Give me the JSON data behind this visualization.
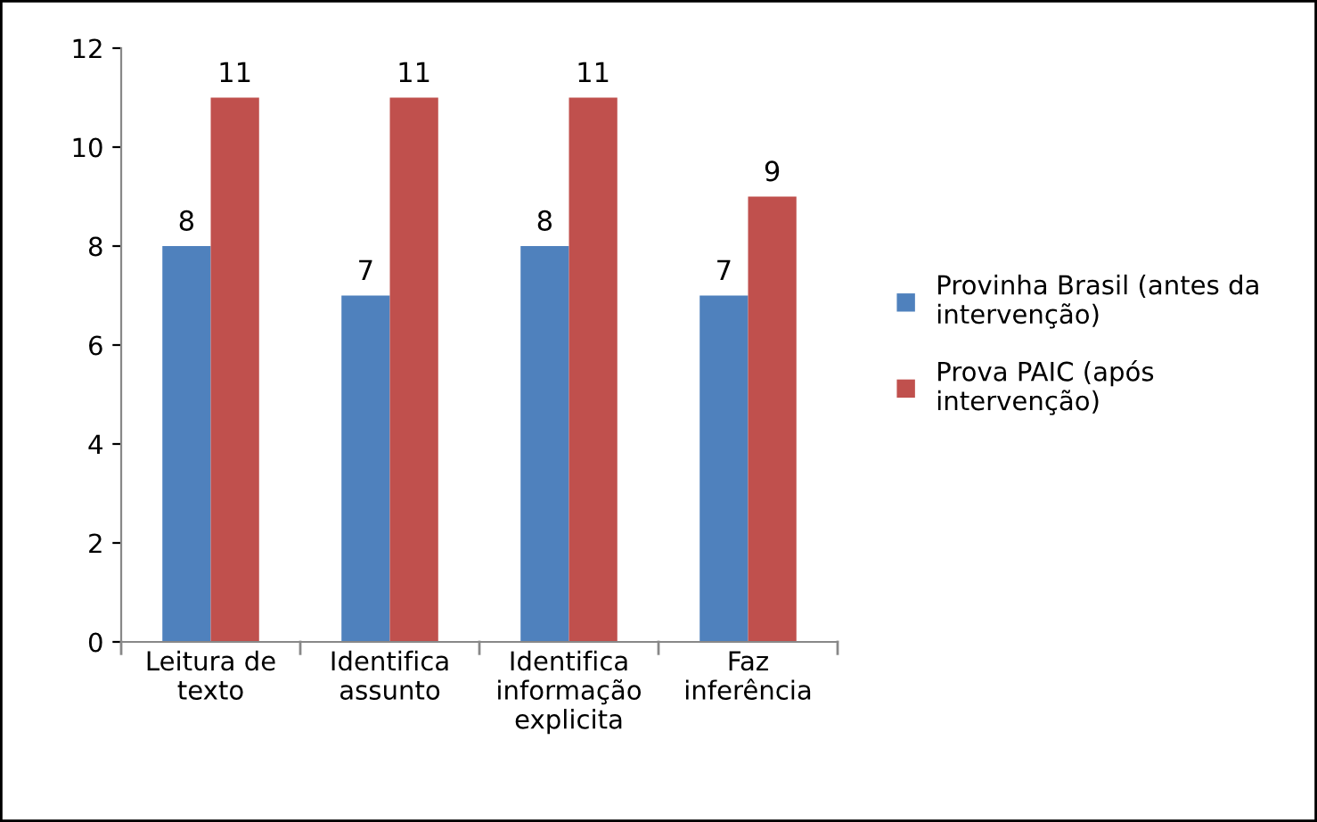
{
  "chart_data": {
    "type": "bar",
    "categories": [
      "Leitura de\ntexto",
      "Identifica\nassunto",
      "Identifica\ninformação\nexplicita",
      "Faz\ninferência"
    ],
    "series": [
      {
        "name": "Provinha Brasil (antes da\nintervenção)",
        "color": "#4f81bd",
        "values": [
          8,
          7,
          8,
          7
        ]
      },
      {
        "name": "Prova PAIC (após\nintervenção)",
        "color": "#c0504d",
        "values": [
          11,
          11,
          11,
          9
        ]
      }
    ],
    "ylim": [
      0,
      12
    ],
    "yticks": [
      0,
      2,
      4,
      6,
      8,
      10,
      12
    ],
    "grid": false,
    "legend": "right",
    "data_labels": true
  }
}
